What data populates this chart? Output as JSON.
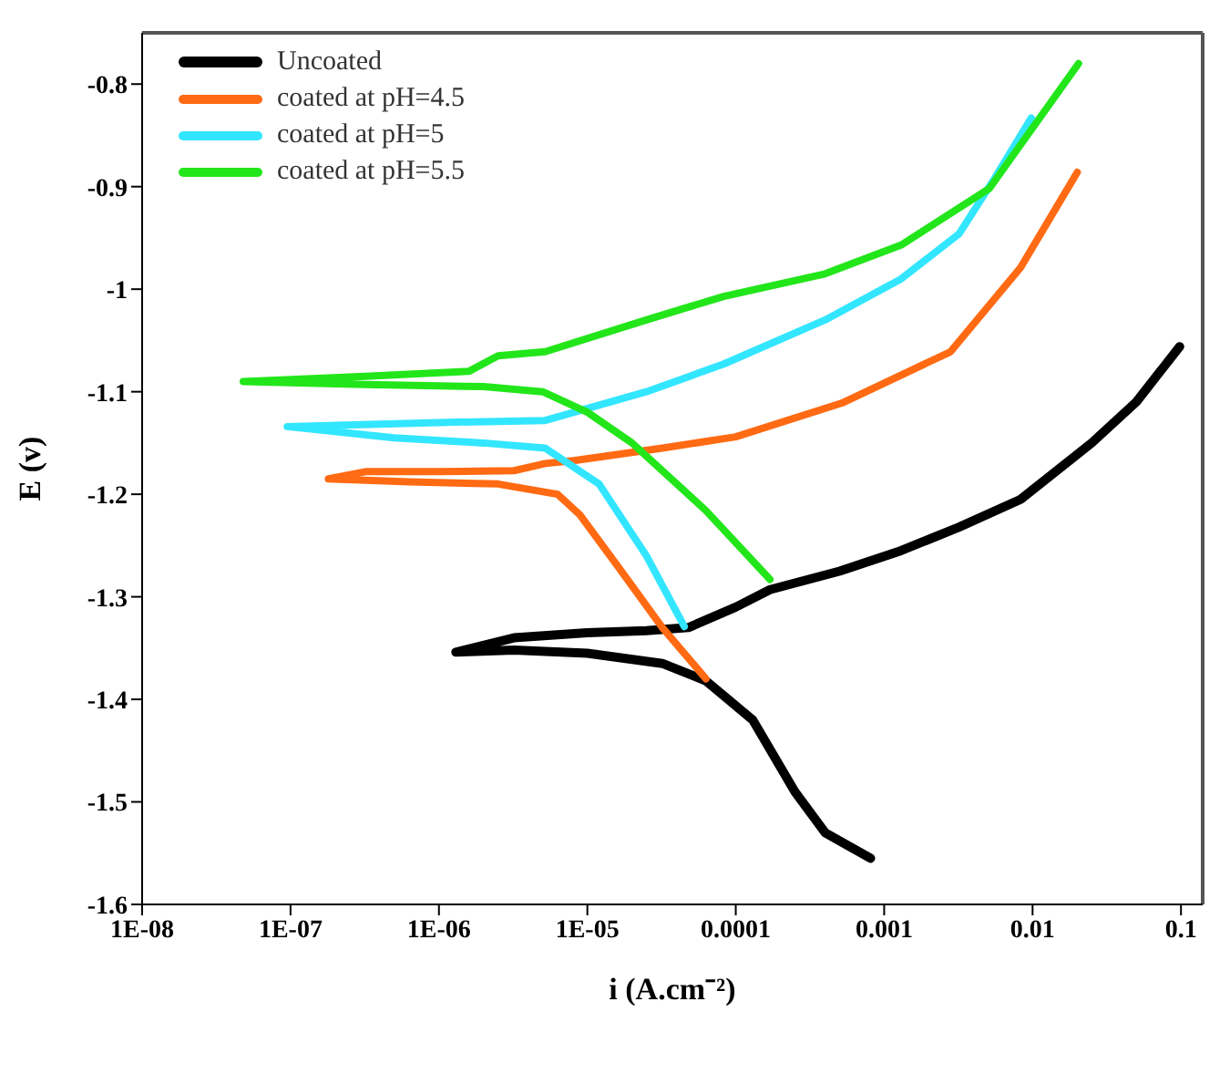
{
  "chart_data": {
    "type": "line",
    "xlabel": "i (A.cm⁻²)",
    "ylabel": "E (v)",
    "log": "x",
    "grid": false,
    "legend": "top left",
    "marker": "none",
    "line_style": "solid",
    "xlim": [
      1e-08,
      0.14
    ],
    "ylim": [
      -1.6,
      -0.75
    ],
    "xticks": [
      {
        "value": 1e-08,
        "label": "1E-08"
      },
      {
        "value": 1e-07,
        "label": "1E-07"
      },
      {
        "value": 1e-06,
        "label": "1E-06"
      },
      {
        "value": 1e-05,
        "label": "1E-05"
      },
      {
        "value": 0.0001,
        "label": "0.0001"
      },
      {
        "value": 0.001,
        "label": "0.001"
      },
      {
        "value": 0.01,
        "label": "0.01"
      },
      {
        "value": 0.1,
        "label": "0.1"
      }
    ],
    "yticks": [
      -1.6,
      -1.5,
      -1.4,
      -1.3,
      -1.2,
      -1.1,
      -1,
      -0.9,
      -0.8
    ],
    "series": [
      {
        "name": "Uncoated",
        "color": "#000000",
        "x": [
          0.00081,
          0.0004,
          0.00025,
          0.00013,
          6.3e-05,
          3.2e-05,
          1e-05,
          3.2e-06,
          1.3e-06,
          3.2e-06,
          1e-05,
          2.5e-05,
          4.8e-05,
          0.0001,
          0.00017,
          0.0005,
          0.0013,
          0.0032,
          0.0083,
          0.025,
          0.05,
          0.098
        ],
        "values": [
          -1.555,
          -1.53,
          -1.49,
          -1.42,
          -1.382,
          -1.365,
          -1.355,
          -1.352,
          -1.354,
          -1.34,
          -1.335,
          -1.333,
          -1.33,
          -1.31,
          -1.293,
          -1.275,
          -1.255,
          -1.232,
          -1.205,
          -1.15,
          -1.11,
          -1.056
        ]
      },
      {
        "name": "coated at pH=4.5",
        "color": "#ff6a13",
        "x": [
          6.3e-05,
          3.2e-05,
          1.6e-05,
          8.9e-06,
          6.3e-06,
          2.5e-06,
          6.3e-07,
          1.8e-07,
          3.2e-07,
          1e-06,
          3.2e-06,
          5.2e-06,
          8.3e-06,
          3.2e-05,
          0.0001,
          0.00052,
          0.0028,
          0.0083,
          0.02
        ],
        "values": [
          -1.38,
          -1.33,
          -1.27,
          -1.22,
          -1.2,
          -1.19,
          -1.188,
          -1.185,
          -1.178,
          -1.178,
          -1.177,
          -1.17,
          -1.167,
          -1.155,
          -1.144,
          -1.111,
          -1.061,
          -0.979,
          -0.886
        ]
      },
      {
        "name": "coated at pH=5",
        "color": "#33e6ff",
        "x": [
          4.5e-05,
          2.5e-05,
          1.2e-05,
          5.2e-06,
          2e-06,
          5e-07,
          9.5e-08,
          3e-07,
          1e-06,
          5.2e-06,
          2.5e-05,
          8.3e-05,
          0.0004,
          0.0013,
          0.0032,
          0.0056,
          0.0098
        ],
        "values": [
          -1.329,
          -1.26,
          -1.19,
          -1.155,
          -1.15,
          -1.145,
          -1.134,
          -1.132,
          -1.13,
          -1.128,
          -1.1,
          -1.073,
          -1.03,
          -0.99,
          -0.946,
          -0.891,
          -0.833
        ]
      },
      {
        "name": "coated at pH=5.5",
        "color": "#22e61a",
        "x": [
          0.00017,
          6.3e-05,
          2e-05,
          1e-05,
          5e-06,
          2e-06,
          3.2e-07,
          4.8e-08,
          3.2e-07,
          1.6e-06,
          2.5e-06,
          5.2e-06,
          2.5e-05,
          8.3e-05,
          0.0004,
          0.0013,
          0.0051,
          0.0204
        ],
        "values": [
          -1.283,
          -1.216,
          -1.15,
          -1.12,
          -1.1,
          -1.095,
          -1.093,
          -1.09,
          -1.085,
          -1.08,
          -1.065,
          -1.061,
          -1.03,
          -1.007,
          -0.985,
          -0.957,
          -0.902,
          -0.78
        ]
      }
    ]
  }
}
